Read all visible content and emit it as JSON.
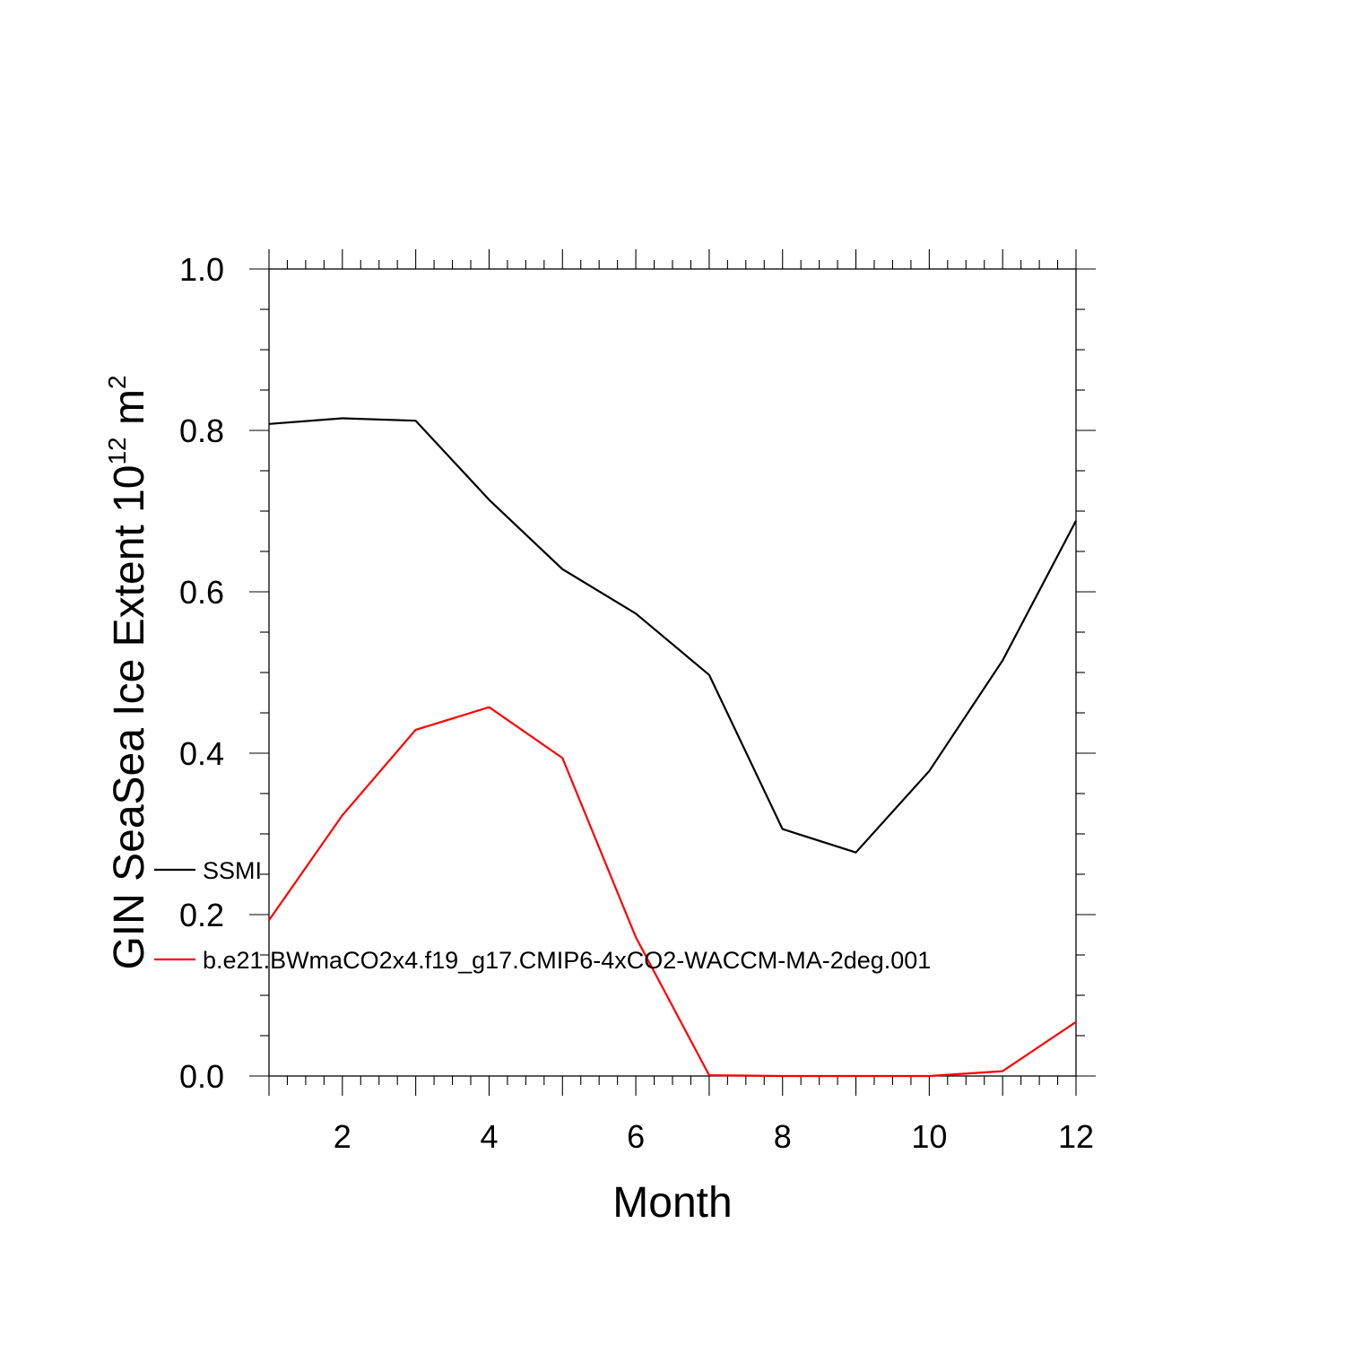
{
  "chart_data": {
    "type": "line",
    "xlabel": "Month",
    "ylabel_main": "GIN SeaSea Ice Extent 10",
    "ylabel_sup": "12",
    "ylabel_unit": " m",
    "ylabel_unit_sup": "2",
    "xlim": [
      1,
      12
    ],
    "ylim": [
      0,
      1.0
    ],
    "x_ticks": [
      2,
      4,
      6,
      8,
      10,
      12
    ],
    "x_tick_labels": [
      "2",
      "4",
      "6",
      "8",
      "10",
      "12"
    ],
    "y_ticks": [
      0,
      0.2,
      0.4,
      0.6,
      0.8,
      1.0
    ],
    "y_tick_labels": [
      "0.0",
      "0.2",
      "0.4",
      "0.6",
      "0.8",
      "1.0"
    ],
    "grid": false,
    "legend_position": "left",
    "x": [
      1,
      2,
      3,
      4,
      5,
      6,
      7,
      8,
      9,
      10,
      11,
      12
    ],
    "series": [
      {
        "name": "SSMI",
        "color": "#000000",
        "values": [
          0.808,
          0.815,
          0.812,
          0.714,
          0.628,
          0.573,
          0.497,
          0.306,
          0.277,
          0.378,
          0.515,
          0.688
        ]
      },
      {
        "name": "b.e21.BWmaCO2x4.f19_g17.CMIP6-4xCO2-WACCM-MA-2deg.001",
        "color": "#ff0000",
        "values": [
          0.193,
          0.323,
          0.429,
          0.457,
          0.394,
          0.172,
          0.001,
          0.0,
          0.0,
          0.0,
          0.006,
          0.067
        ]
      }
    ]
  }
}
